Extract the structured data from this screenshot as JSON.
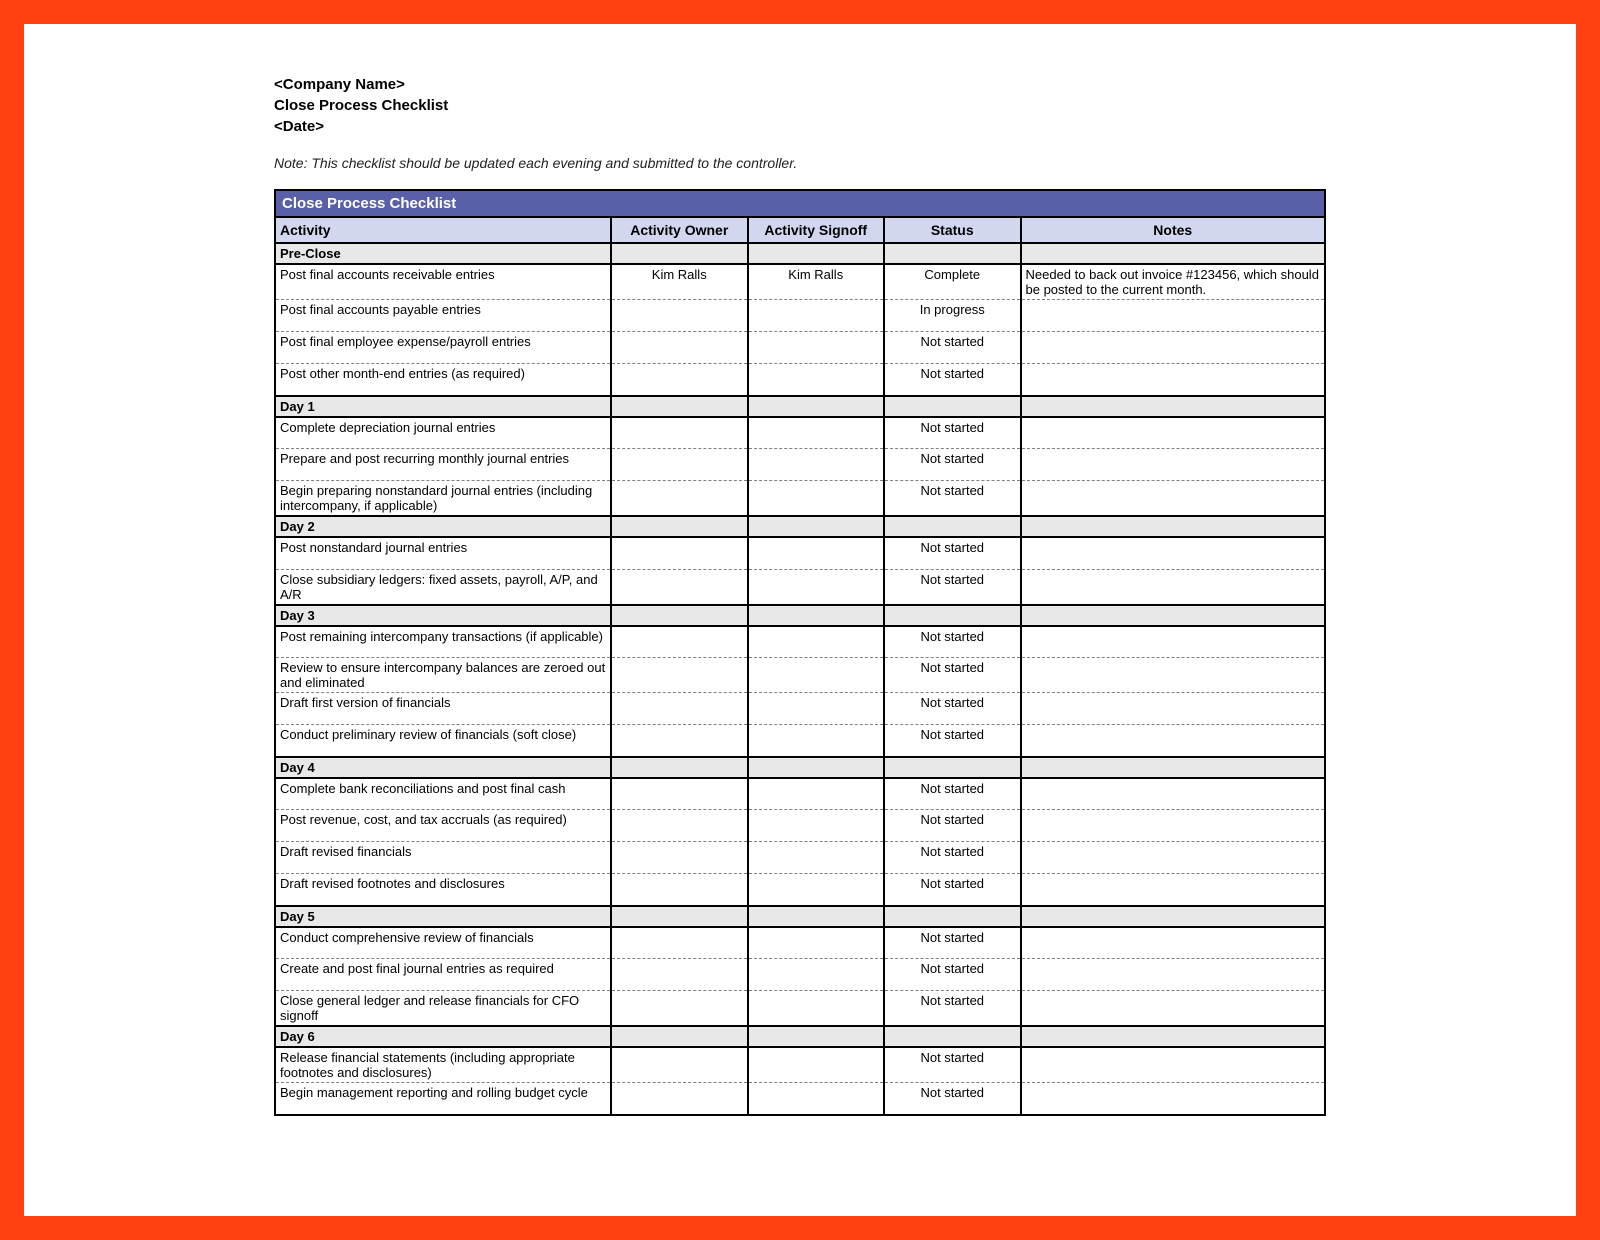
{
  "frame": {
    "border_color": "#ff4010",
    "page_bg": "#ffffff"
  },
  "header": {
    "company_placeholder": "<Company Name>",
    "title": "Close Process Checklist",
    "date_placeholder": "<Date>"
  },
  "note": "Note: This checklist should be updated each evening and submitted to the controller.",
  "table": {
    "title": "Close Process Checklist",
    "title_bg": "#5a60a8",
    "title_text_color": "#ffffff",
    "header_bg": "#d3d6ef",
    "section_bg": "#e8e8e8",
    "border_color": "#000000",
    "dash_color": "#808080",
    "columns": [
      "Activity",
      "Activity Owner",
      "Activity Signoff",
      "Status",
      "Notes"
    ],
    "col_widths_pct": [
      32,
      13,
      13,
      13,
      29
    ],
    "sections": [
      {
        "label": "Pre-Close",
        "rows": [
          {
            "activity": "Post final accounts receivable entries",
            "owner": "Kim Ralls",
            "signoff": "Kim Ralls",
            "status": "Complete",
            "notes": "Needed to back out invoice #123456, which should be posted to the current month."
          },
          {
            "activity": "Post final accounts payable entries",
            "owner": "",
            "signoff": "",
            "status": "In progress",
            "notes": ""
          },
          {
            "activity": "Post final employee expense/payroll entries",
            "owner": "",
            "signoff": "",
            "status": "Not started",
            "notes": ""
          },
          {
            "activity": "Post other month-end entries (as required)",
            "owner": "",
            "signoff": "",
            "status": "Not started",
            "notes": ""
          }
        ]
      },
      {
        "label": "Day 1",
        "rows": [
          {
            "activity": "Complete depreciation journal entries",
            "owner": "",
            "signoff": "",
            "status": "Not started",
            "notes": ""
          },
          {
            "activity": "Prepare and post recurring monthly journal entries",
            "owner": "",
            "signoff": "",
            "status": "Not started",
            "notes": ""
          },
          {
            "activity": "Begin preparing nonstandard journal entries (including intercompany, if applicable)",
            "owner": "",
            "signoff": "",
            "status": "Not started",
            "notes": ""
          }
        ]
      },
      {
        "label": "Day 2",
        "rows": [
          {
            "activity": "Post nonstandard journal entries",
            "owner": "",
            "signoff": "",
            "status": "Not started",
            "notes": ""
          },
          {
            "activity": "Close subsidiary ledgers: fixed assets, payroll, A/P, and A/R",
            "owner": "",
            "signoff": "",
            "status": "Not started",
            "notes": ""
          }
        ]
      },
      {
        "label": "Day 3",
        "rows": [
          {
            "activity": "Post remaining intercompany transactions (if applicable)",
            "owner": "",
            "signoff": "",
            "status": "Not started",
            "notes": ""
          },
          {
            "activity": "Review to ensure intercompany balances are zeroed out and eliminated",
            "owner": "",
            "signoff": "",
            "status": "Not started",
            "notes": ""
          },
          {
            "activity": "Draft first version of financials",
            "owner": "",
            "signoff": "",
            "status": "Not started",
            "notes": ""
          },
          {
            "activity": "Conduct preliminary review of financials (soft close)",
            "owner": "",
            "signoff": "",
            "status": "Not started",
            "notes": ""
          }
        ]
      },
      {
        "label": "Day 4",
        "rows": [
          {
            "activity": "Complete bank reconciliations and post final cash",
            "owner": "",
            "signoff": "",
            "status": "Not started",
            "notes": ""
          },
          {
            "activity": "Post revenue, cost, and tax accruals (as required)",
            "owner": "",
            "signoff": "",
            "status": "Not started",
            "notes": ""
          },
          {
            "activity": "Draft revised financials",
            "owner": "",
            "signoff": "",
            "status": "Not started",
            "notes": ""
          },
          {
            "activity": "Draft revised footnotes and disclosures",
            "owner": "",
            "signoff": "",
            "status": "Not started",
            "notes": ""
          }
        ]
      },
      {
        "label": "Day 5",
        "rows": [
          {
            "activity": "Conduct comprehensive review of financials",
            "owner": "",
            "signoff": "",
            "status": "Not started",
            "notes": ""
          },
          {
            "activity": "Create and post final journal entries as required",
            "owner": "",
            "signoff": "",
            "status": "Not started",
            "notes": ""
          },
          {
            "activity": "Close general ledger and release financials for CFO signoff",
            "owner": "",
            "signoff": "",
            "status": "Not started",
            "notes": ""
          }
        ]
      },
      {
        "label": "Day 6",
        "rows": [
          {
            "activity": "Release financial statements (including appropriate footnotes and disclosures)",
            "owner": "",
            "signoff": "",
            "status": "Not started",
            "notes": ""
          },
          {
            "activity": "Begin management reporting and rolling budget cycle",
            "owner": "",
            "signoff": "",
            "status": "Not started",
            "notes": ""
          }
        ]
      }
    ]
  }
}
